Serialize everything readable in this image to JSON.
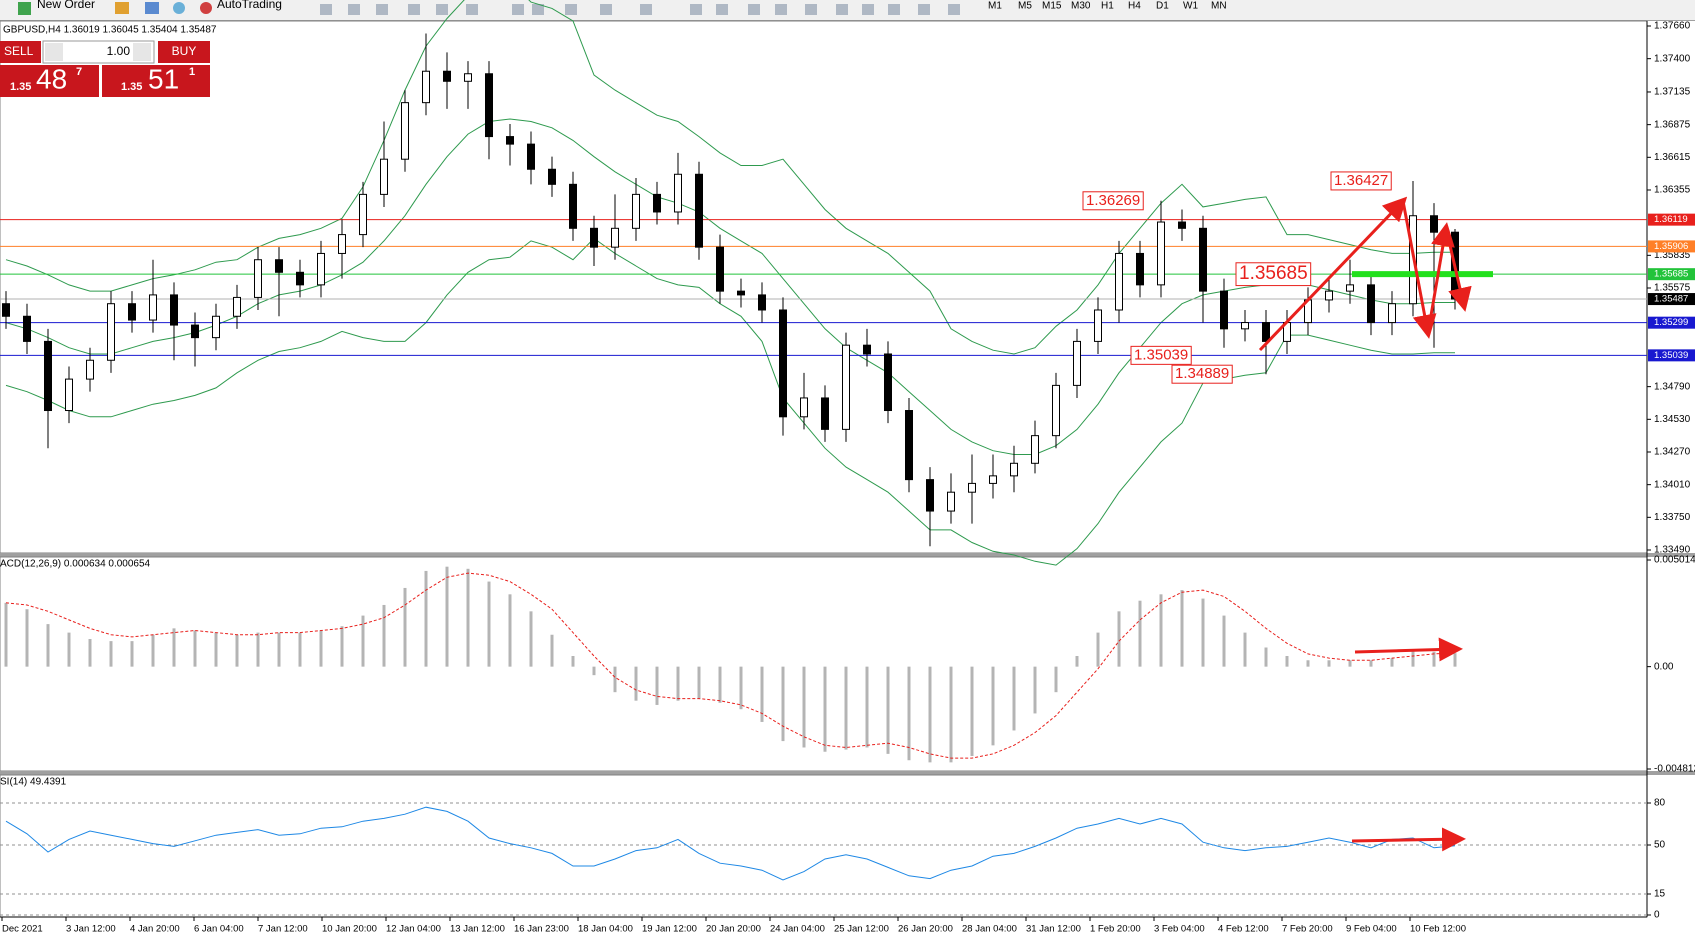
{
  "toolbar": {
    "new_order": "New Order",
    "autotrading": "AutoTrading",
    "timeframes": [
      "M1",
      "M5",
      "M15",
      "M30",
      "H1",
      "H4",
      "D1",
      "W1",
      "MN"
    ]
  },
  "trade_panel": {
    "sell": "SELL",
    "lot": "1.00",
    "buy": "BUY",
    "bid_prefix": "1.35",
    "bid_big": "48",
    "bid_small": "7",
    "ask_prefix": "1.35",
    "ask_big": "51",
    "ask_small": "1"
  },
  "chart_data": [
    {
      "type": "candlestick",
      "title": "GBPUSD,H4 1.36019 1.36045 1.35404 1.35487",
      "open": [
        1.3545,
        1.3535,
        1.3515,
        1.346,
        1.3485,
        1.35,
        1.3545,
        1.3532,
        1.3552,
        1.3528,
        1.3518,
        1.3535,
        1.355,
        1.358,
        1.357,
        1.356,
        1.3585,
        1.36,
        1.3632,
        1.366,
        1.3705,
        1.373,
        1.3722,
        1.3728,
        1.3678,
        1.3672,
        1.3652,
        1.364,
        1.3605,
        1.359,
        1.3605,
        1.3632,
        1.3618,
        1.3648,
        1.359,
        1.3555,
        1.3552,
        1.354,
        1.3455,
        1.347,
        1.3445,
        1.3512,
        1.3505,
        1.346,
        1.3405,
        1.338,
        1.3395,
        1.3402,
        1.3408,
        1.3418,
        1.344,
        1.348,
        1.3515,
        1.354,
        1.3585,
        1.356,
        1.361,
        1.3605,
        1.3555,
        1.3525,
        1.353,
        1.3515,
        1.353,
        1.3548,
        1.3555,
        1.356,
        1.353,
        1.3545,
        1.3615,
        1.36019
      ],
      "high": [
        1.3555,
        1.3545,
        1.3525,
        1.3495,
        1.351,
        1.3555,
        1.3555,
        1.358,
        1.3562,
        1.3538,
        1.3545,
        1.356,
        1.359,
        1.359,
        1.358,
        1.3595,
        1.3612,
        1.3642,
        1.369,
        1.3715,
        1.376,
        1.3745,
        1.3738,
        1.3738,
        1.3688,
        1.3682,
        1.3662,
        1.365,
        1.3615,
        1.3632,
        1.3645,
        1.3642,
        1.3665,
        1.3658,
        1.36,
        1.3565,
        1.3562,
        1.355,
        1.349,
        1.348,
        1.3522,
        1.3525,
        1.3515,
        1.347,
        1.3415,
        1.341,
        1.3425,
        1.3425,
        1.3432,
        1.3452,
        1.349,
        1.3525,
        1.355,
        1.3595,
        1.3595,
        1.36269,
        1.362,
        1.3615,
        1.3565,
        1.354,
        1.354,
        1.354,
        1.3558,
        1.3565,
        1.358,
        1.357,
        1.3555,
        1.36427,
        1.3625,
        1.36045
      ],
      "low": [
        1.3525,
        1.3505,
        1.343,
        1.345,
        1.3475,
        1.349,
        1.3522,
        1.3522,
        1.35,
        1.3495,
        1.3508,
        1.3525,
        1.354,
        1.3535,
        1.355,
        1.355,
        1.3565,
        1.359,
        1.3622,
        1.365,
        1.3695,
        1.37,
        1.37,
        1.366,
        1.3655,
        1.364,
        1.363,
        1.3595,
        1.3575,
        1.358,
        1.3595,
        1.3608,
        1.3608,
        1.358,
        1.3545,
        1.3542,
        1.353,
        1.344,
        1.3445,
        1.3435,
        1.3435,
        1.3495,
        1.345,
        1.3395,
        1.3352,
        1.337,
        1.337,
        1.339,
        1.3395,
        1.341,
        1.343,
        1.347,
        1.3505,
        1.353,
        1.355,
        1.355,
        1.3595,
        1.353,
        1.351,
        1.3515,
        1.34889,
        1.3505,
        1.352,
        1.3538,
        1.3545,
        1.352,
        1.352,
        1.3535,
        1.351,
        1.35404
      ],
      "close": [
        1.3535,
        1.3515,
        1.346,
        1.3485,
        1.35,
        1.3545,
        1.3532,
        1.3552,
        1.3528,
        1.3518,
        1.3535,
        1.355,
        1.358,
        1.357,
        1.356,
        1.3585,
        1.36,
        1.3632,
        1.366,
        1.3705,
        1.373,
        1.3722,
        1.3728,
        1.3678,
        1.3672,
        1.3652,
        1.364,
        1.3605,
        1.359,
        1.3605,
        1.3632,
        1.3618,
        1.3648,
        1.359,
        1.3555,
        1.3552,
        1.354,
        1.3455,
        1.347,
        1.3445,
        1.3512,
        1.3505,
        1.346,
        1.3405,
        1.338,
        1.3395,
        1.3402,
        1.3408,
        1.3418,
        1.344,
        1.348,
        1.3515,
        1.354,
        1.3585,
        1.356,
        1.361,
        1.3605,
        1.3555,
        1.3525,
        1.353,
        1.3515,
        1.353,
        1.3548,
        1.3555,
        1.356,
        1.353,
        1.3545,
        1.3615,
        1.36019,
        1.35487
      ],
      "bands": {
        "color": "#2e9a4e",
        "upper": [
          1.358,
          1.3575,
          1.3568,
          1.356,
          1.3555,
          1.3555,
          1.356,
          1.3565,
          1.3568,
          1.3572,
          1.3578,
          1.358,
          1.359,
          1.3597,
          1.36,
          1.3605,
          1.3613,
          1.3638,
          1.3675,
          1.3715,
          1.375,
          1.3772,
          1.379,
          1.38,
          1.3802,
          1.3785,
          1.378,
          1.377,
          1.3727,
          1.3715,
          1.3705,
          1.3695,
          1.369,
          1.3678,
          1.3665,
          1.3655,
          1.3655,
          1.366,
          1.364,
          1.362,
          1.3605,
          1.3595,
          1.3585,
          1.357,
          1.3555,
          1.3525,
          1.3515,
          1.3508,
          1.3505,
          1.351,
          1.3527,
          1.354,
          1.356,
          1.3585,
          1.3605,
          1.3625,
          1.364,
          1.3622,
          1.3625,
          1.3628,
          1.363,
          1.36,
          1.36,
          1.3596,
          1.3592,
          1.3588,
          1.3585,
          1.3585,
          1.3586,
          1.3586
        ],
        "middle": [
          1.353,
          1.3525,
          1.3518,
          1.351,
          1.3505,
          1.3505,
          1.351,
          1.3515,
          1.3518,
          1.3522,
          1.3528,
          1.3535,
          1.3545,
          1.3552,
          1.3555,
          1.356,
          1.3568,
          1.3578,
          1.3595,
          1.3615,
          1.364,
          1.3662,
          1.368,
          1.369,
          1.3692,
          1.369,
          1.3685,
          1.3675,
          1.3662,
          1.365,
          1.364,
          1.363,
          1.3625,
          1.3618,
          1.3605,
          1.3595,
          1.3585,
          1.3565,
          1.3545,
          1.3525,
          1.351,
          1.35,
          1.349,
          1.3475,
          1.346,
          1.3445,
          1.3435,
          1.3428,
          1.3425,
          1.3425,
          1.3432,
          1.3445,
          1.3465,
          1.349,
          1.351,
          1.353,
          1.3545,
          1.3552,
          1.3555,
          1.3558,
          1.356,
          1.356,
          1.356,
          1.3556,
          1.3552,
          1.3548,
          1.3545,
          1.3545,
          1.3546,
          1.3546
        ],
        "lower": [
          1.348,
          1.3475,
          1.3468,
          1.346,
          1.3455,
          1.3455,
          1.346,
          1.3465,
          1.3468,
          1.3472,
          1.3478,
          1.349,
          1.35,
          1.3507,
          1.351,
          1.3515,
          1.3523,
          1.3518,
          1.3515,
          1.3515,
          1.353,
          1.3552,
          1.357,
          1.358,
          1.3582,
          1.3595,
          1.359,
          1.358,
          1.3597,
          1.3585,
          1.3575,
          1.3565,
          1.356,
          1.3558,
          1.3545,
          1.3535,
          1.3515,
          1.347,
          1.345,
          1.343,
          1.3415,
          1.3405,
          1.3395,
          1.338,
          1.3365,
          1.3365,
          1.3355,
          1.3348,
          1.3345,
          1.334,
          1.3337,
          1.335,
          1.337,
          1.3395,
          1.3415,
          1.3435,
          1.345,
          1.3482,
          1.3485,
          1.3488,
          1.349,
          1.352,
          1.352,
          1.3516,
          1.3512,
          1.3508,
          1.3505,
          1.3505,
          1.3506,
          1.3506
        ]
      },
      "levels": [
        {
          "value": 1.36119,
          "color": "#e8201c"
        },
        {
          "value": 1.35906,
          "color": "#ff7f27"
        },
        {
          "value": 1.35685,
          "color": "#22c33a"
        },
        {
          "value": 1.35487,
          "color": "#000000"
        },
        {
          "value": 1.35299,
          "color": "#1818d0"
        },
        {
          "value": 1.35039,
          "color": "#1818d0"
        }
      ],
      "annotations": [
        1.36427,
        1.36269,
        1.35685,
        1.35039,
        1.34889
      ],
      "ylim": [
        1.3349,
        1.3766
      ],
      "yticks": [
        {
          "value": 1.3766,
          "label": "1.37660"
        },
        {
          "value": 1.374,
          "label": "1.37400"
        },
        1.37135,
        1.36875,
        1.36615,
        1.36355,
        1.35835,
        1.35575,
        {
          "value": 1.3479,
          "label": "1.34790"
        },
        {
          "value": 1.3453,
          "label": "1.34530"
        },
        {
          "value": 1.3427,
          "label": "1.34270"
        },
        {
          "value": 1.3401,
          "label": "1.34010"
        },
        {
          "value": 1.3375,
          "label": "1.33750"
        },
        {
          "value": 1.3349,
          "label": "1.33490"
        }
      ]
    },
    {
      "type": "macd",
      "title": "ACD(12,26,9) 0.000634 0.000654",
      "color": "#b4b4b4",
      "signal_color": "#e8201c",
      "histogram": [
        0.003,
        0.0027,
        0.002,
        0.0016,
        0.0013,
        0.0012,
        0.0012,
        0.0015,
        0.0018,
        0.0017,
        0.0016,
        0.0015,
        0.0016,
        0.0016,
        0.0016,
        0.0017,
        0.0019,
        0.0024,
        0.0029,
        0.0037,
        0.0045,
        0.0047,
        0.0046,
        0.004,
        0.0034,
        0.0026,
        0.0015,
        0.0005,
        -0.0004,
        -0.0012,
        -0.0016,
        -0.0018,
        -0.0016,
        -0.0015,
        -0.0017,
        -0.002,
        -0.0026,
        -0.0035,
        -0.0038,
        -0.004,
        -0.0039,
        -0.0038,
        -0.0041,
        -0.0044,
        -0.0045,
        -0.0045,
        -0.0042,
        -0.0037,
        -0.003,
        -0.0022,
        -0.0012,
        0.0005,
        0.0016,
        0.0026,
        0.0031,
        0.0034,
        0.0036,
        0.0032,
        0.0024,
        0.0016,
        0.0009,
        0.0005,
        0.0003,
        0.0003,
        0.0003,
        0.0003,
        0.0004,
        0.0008,
        0.0007,
        0.000634
      ],
      "signal": [
        0.003,
        0.0029,
        0.0026,
        0.0022,
        0.0018,
        0.0015,
        0.0014,
        0.0015,
        0.0016,
        0.0017,
        0.0016,
        0.0015,
        0.0015,
        0.0016,
        0.0016,
        0.0017,
        0.0018,
        0.002,
        0.0023,
        0.0029,
        0.0036,
        0.0042,
        0.0044,
        0.0043,
        0.004,
        0.0034,
        0.0027,
        0.0016,
        0.0005,
        -0.0005,
        -0.0011,
        -0.0014,
        -0.0015,
        -0.0015,
        -0.0016,
        -0.0018,
        -0.0022,
        -0.0028,
        -0.0033,
        -0.0037,
        -0.0038,
        -0.0037,
        -0.0036,
        -0.0038,
        -0.0041,
        -0.0043,
        -0.0043,
        -0.0041,
        -0.0037,
        -0.0031,
        -0.0023,
        -0.0012,
        -0.0001,
        0.0012,
        0.0022,
        0.003,
        0.0035,
        0.0036,
        0.0033,
        0.0026,
        0.0018,
        0.0011,
        0.0006,
        0.0004,
        0.0003,
        0.0003,
        0.0004,
        0.0005,
        0.0006,
        0.000654
      ],
      "ylim": [
        -0.004812,
        0.005014
      ],
      "yticks": [
        0.005014,
        {
          "value": 0,
          "label": "0.00"
        },
        -0.004812
      ]
    },
    {
      "type": "line",
      "title": "SI(14) 49.4391",
      "color": "#1e88e5",
      "values": [
        67,
        58,
        45,
        54,
        60,
        57,
        54,
        51,
        49,
        53,
        57,
        59,
        61,
        57,
        58,
        62,
        63,
        67,
        69,
        72,
        77,
        74,
        67,
        55,
        51,
        48,
        44,
        35,
        35,
        40,
        46,
        48,
        54,
        44,
        37,
        35,
        32,
        25,
        31,
        40,
        43,
        40,
        34,
        28,
        26,
        32,
        35,
        42,
        44,
        49,
        55,
        62,
        65,
        69,
        65,
        69,
        65,
        52,
        48,
        46,
        48,
        49,
        52,
        55,
        52,
        48,
        54,
        55,
        48,
        49.4391
      ],
      "ylim": [
        0,
        100
      ],
      "yticks": [
        80,
        50,
        15,
        0
      ],
      "grid": true
    }
  ],
  "time_axis": [
    "Dec 2021",
    "3 Jan 12:00",
    "4 Jan 20:00",
    "6 Jan 04:00",
    "7 Jan 12:00",
    "10 Jan 20:00",
    "12 Jan 04:00",
    "13 Jan 12:00",
    "16 Jan 23:00",
    "18 Jan 04:00",
    "19 Jan 12:00",
    "20 Jan 20:00",
    "24 Jan 04:00",
    "25 Jan 12:00",
    "26 Jan 20:00",
    "28 Jan 04:00",
    "31 Jan 12:00",
    "1 Feb 20:00",
    "3 Feb 04:00",
    "4 Feb 12:00",
    "7 Feb 20:00",
    "9 Feb 04:00",
    "10 Feb 12:00"
  ]
}
